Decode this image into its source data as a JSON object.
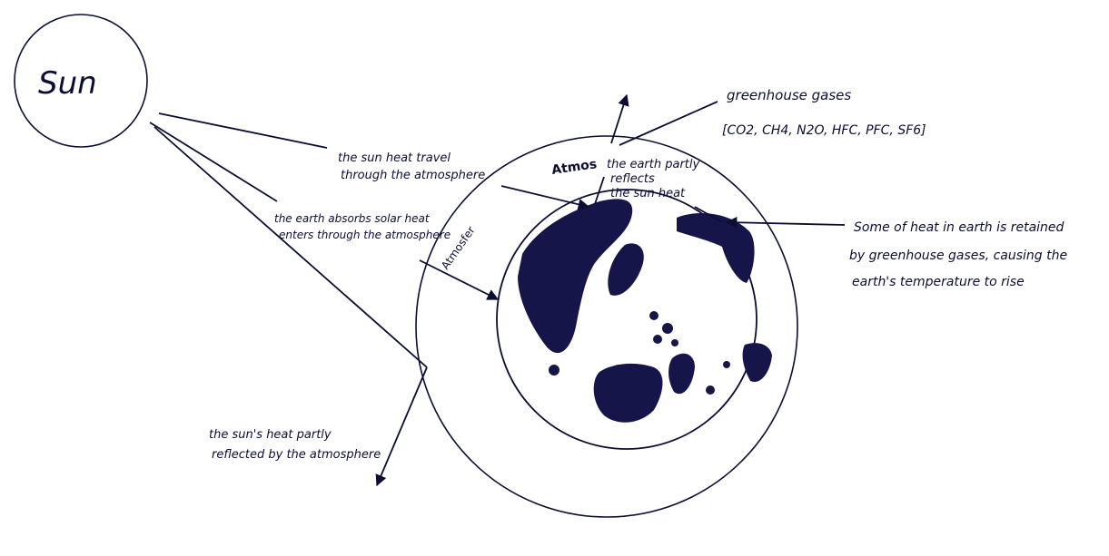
{
  "colors": {
    "ink": "#0b0d33",
    "land": "#15154a",
    "paper": "#ffffff"
  },
  "labels": {
    "sun": "Sun",
    "greenhouse_title": "greenhouse gases",
    "greenhouse_list": "[CO2, CH4, N2O, HFC, PFC, SF6]",
    "sun_heat_travel_1": "the sun heat travel",
    "sun_heat_travel_2": "through the atmosphere",
    "earth_reflects_1": "the earth partly",
    "earth_reflects_2": "reflects",
    "earth_reflects_3": "the sun heat",
    "earth_absorbs_1": "the earth absorbs solar heat",
    "earth_absorbs_2": "enters through the atmosphere",
    "heat_retained_1": "Some of heat in earth is retained",
    "heat_retained_2": "by greenhouse gases, causing the",
    "heat_retained_3": "earth's temperature to rise",
    "sun_reflected_1": "the sun's heat partly",
    "sun_reflected_2": "reflected by the atmosphere",
    "atmos_top": "Atmos",
    "atmos_left": "Atmosfer"
  }
}
